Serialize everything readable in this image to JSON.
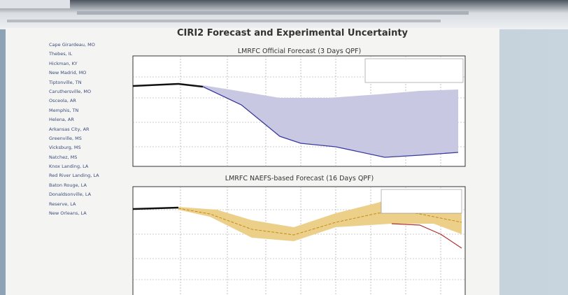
{
  "header": {
    "title": "CIRI2 Forecast and Experimental Uncertainty"
  },
  "stations": [
    "Cape Girardeau, MO",
    "Thebes, IL",
    "Hickman, KY",
    "New Madrid, MO",
    "Tiptonville, TN",
    "Caruthersville, MO",
    "Osceola, AR",
    "Memphis, TN",
    "Helena, AR",
    "Arkansas City, AR",
    "Greenville, MS",
    "Vicksburg, MS",
    "Natchez, MS",
    "Knox Landing, LA",
    "Red River Landing, LA",
    "Baton Rouge, LA",
    "Donaldsonville, LA",
    "Reserve, LA",
    "New Orleans, LA"
  ],
  "charts": [
    {
      "title": "LMRFC Official Forecast (3 Days QPF)"
    },
    {
      "title": "LMRFC NAEFS-based Forecast (16 Days QPF)"
    }
  ]
}
